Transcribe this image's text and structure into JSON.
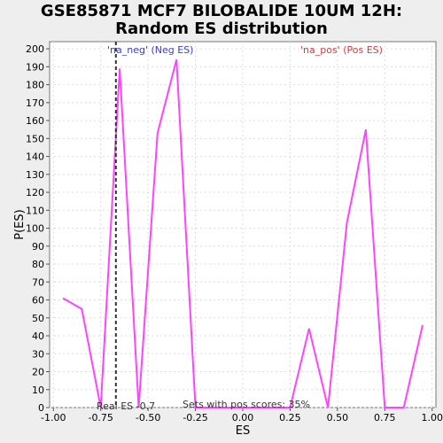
{
  "chart_data": {
    "type": "line",
    "title_line1": "GSE85871 MCF7 BILOBALIDE 10UM 12H:",
    "title_line2": "Random ES distribution",
    "xlabel": "ES",
    "ylabel": "P(ES)",
    "xlim": [
      -1.02,
      1.02
    ],
    "ylim": [
      0,
      204
    ],
    "x_ticks": [
      -1.0,
      -0.75,
      -0.5,
      -0.25,
      0.0,
      0.25,
      0.5,
      0.75,
      1.0
    ],
    "x_tick_labels": [
      "-1.00",
      "-0.75",
      "-0.50",
      "-0.25",
      "0.00",
      "0.25",
      "0.50",
      "0.75",
      "1.00"
    ],
    "y_ticks": [
      0,
      10,
      20,
      30,
      40,
      50,
      60,
      70,
      80,
      90,
      100,
      110,
      120,
      130,
      140,
      150,
      160,
      170,
      180,
      190,
      200
    ],
    "grid": true,
    "series": [
      {
        "color": "#ff44ff",
        "x": [
          -0.95,
          -0.85,
          -0.75,
          -0.65,
          -0.55,
          -0.45,
          -0.35,
          -0.25,
          -0.15,
          -0.05,
          0.05,
          0.15,
          0.25,
          0.35,
          0.45,
          0.55,
          0.65,
          0.75,
          0.85,
          0.95
        ],
        "y": [
          61,
          55,
          0,
          189,
          0,
          153,
          194,
          0,
          0,
          0,
          0,
          0,
          0,
          44,
          0,
          103,
          155,
          0,
          0,
          46
        ]
      }
    ],
    "real_es": -0.67,
    "real_es_label": "Real ES -0.7",
    "neg_label": "'na_neg' (Neg ES)",
    "pos_label": "'na_pos' (Pos ES)",
    "pos_scores_label": "Sets with pos scores: 35%",
    "colors": {
      "neg": "#4040c0",
      "pos": "#d04040",
      "line": "#ff44ff",
      "real_es_line": "#333333"
    }
  }
}
